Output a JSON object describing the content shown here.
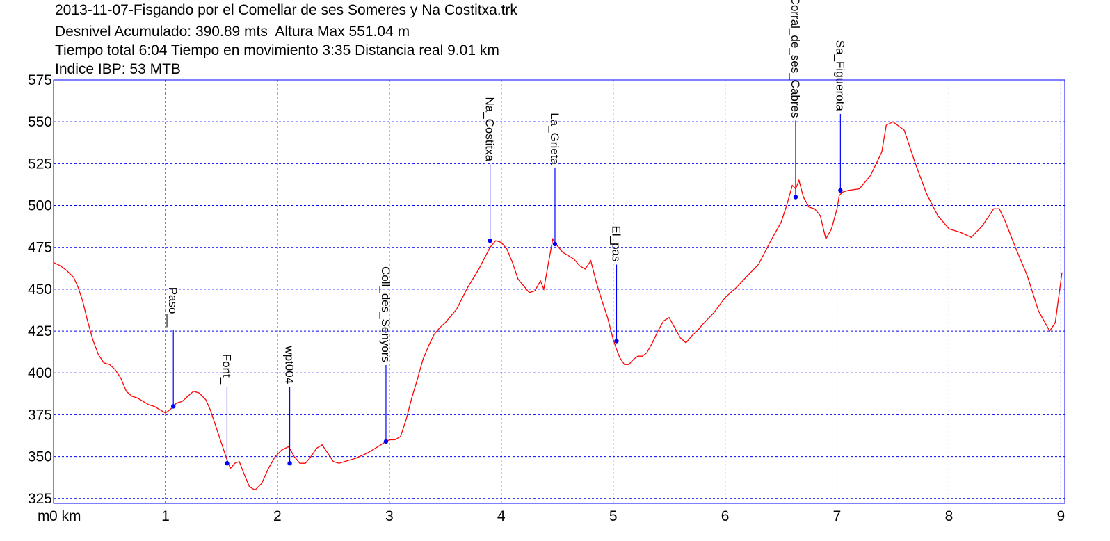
{
  "chart_data": {
    "type": "line",
    "title": "2013-11-07-Fisgando por el Comellar de ses Someres y Na Costitxa.trk",
    "subtitle_lines": [
      "Desnivel Acumulado: 390.89 mts  Altura Max 551.04 m",
      "Tiempo total 6:04 Tiempo en movimiento 3:35 Distancia real 9.01 km",
      "Indice IBP: 53 MTB"
    ],
    "x_unit_label": "m",
    "x_unit_suffix": "km",
    "xlim": [
      0,
      9.01
    ],
    "ylim": [
      322,
      575
    ],
    "y_ticks": [
      575,
      550,
      525,
      500,
      475,
      450,
      425,
      400,
      375,
      350,
      325
    ],
    "x_ticks": [
      0,
      1,
      2,
      3,
      4,
      5,
      6,
      7,
      8,
      9
    ],
    "grid": true,
    "line_color": "#ff0000",
    "grid_color": "#0000ff",
    "waypoint_color": "#0000ff",
    "series": [
      {
        "x": [
          0,
          0.06,
          0.12,
          0.18,
          0.22,
          0.26,
          0.3,
          0.35,
          0.4,
          0.45,
          0.5,
          0.55,
          0.6,
          0.65,
          0.7,
          0.75,
          0.8,
          0.85,
          0.9,
          0.95,
          1.0,
          1.04,
          1.07,
          1.1,
          1.15,
          1.2,
          1.25,
          1.3,
          1.36,
          1.4,
          1.45,
          1.5,
          1.55,
          1.58,
          1.62,
          1.66,
          1.7,
          1.75,
          1.8,
          1.86,
          1.92,
          1.98,
          2.04,
          2.1,
          2.15,
          2.2,
          2.25,
          2.3,
          2.35,
          2.4,
          2.45,
          2.5,
          2.55,
          2.6,
          2.7,
          2.8,
          2.9,
          2.97,
          3.0,
          3.05,
          3.1,
          3.15,
          3.2,
          3.25,
          3.3,
          3.35,
          3.4,
          3.45,
          3.5,
          3.6,
          3.7,
          3.8,
          3.9,
          3.95,
          4.0,
          4.05,
          4.1,
          4.15,
          4.2,
          4.25,
          4.3,
          4.35,
          4.38,
          4.42,
          4.46,
          4.5,
          4.55,
          4.6,
          4.65,
          4.7,
          4.75,
          4.8,
          4.85,
          4.9,
          4.95,
          5.0,
          5.03,
          5.06,
          5.1,
          5.14,
          5.18,
          5.22,
          5.26,
          5.3,
          5.35,
          5.4,
          5.45,
          5.5,
          5.55,
          5.6,
          5.65,
          5.7,
          5.75,
          5.8,
          5.9,
          6.0,
          6.1,
          6.2,
          6.3,
          6.4,
          6.5,
          6.55,
          6.6,
          6.63,
          6.66,
          6.7,
          6.75,
          6.8,
          6.85,
          6.9,
          6.95,
          7.0,
          7.02,
          7.05,
          7.1,
          7.2,
          7.3,
          7.4,
          7.44,
          7.5,
          7.6,
          7.7,
          7.8,
          7.9,
          8.0,
          8.1,
          8.2,
          8.3,
          8.4,
          8.45,
          8.5,
          8.6,
          8.7,
          8.8,
          8.9,
          8.95,
          9.01
        ],
        "y": [
          466,
          464,
          461,
          457,
          451,
          443,
          432,
          420,
          411,
          406,
          405,
          402,
          397,
          389,
          386,
          385,
          383,
          381,
          380,
          378,
          376,
          378,
          380,
          382,
          383,
          386,
          389,
          388,
          384,
          378,
          368,
          358,
          348,
          343,
          346,
          347,
          340,
          332,
          330,
          334,
          343,
          350,
          354,
          356,
          350,
          346,
          346,
          350,
          355,
          357,
          352,
          347,
          346,
          347,
          349,
          352,
          356,
          359,
          360,
          360,
          362,
          372,
          385,
          396,
          408,
          416,
          423,
          427,
          430,
          438,
          451,
          462,
          475,
          479,
          478,
          474,
          466,
          456,
          452,
          448,
          449,
          455,
          450,
          465,
          480,
          476,
          472,
          470,
          468,
          464,
          462,
          467,
          454,
          443,
          433,
          420,
          414,
          409,
          405,
          405,
          408,
          410,
          410,
          412,
          418,
          425,
          431,
          433,
          427,
          421,
          418,
          422,
          425,
          429,
          436,
          445,
          451,
          458,
          465,
          478,
          490,
          500,
          512,
          510,
          515,
          505,
          499,
          498,
          494,
          480,
          486,
          498,
          506,
          508,
          509,
          510,
          518,
          532,
          548,
          550,
          545,
          525,
          507,
          494,
          486,
          484,
          481,
          488,
          498,
          498,
          491,
          474,
          458,
          437,
          425,
          430,
          460
        ]
      }
    ],
    "waypoints": [
      {
        "name": "Paso__",
        "x": 1.07,
        "y": 380
      },
      {
        "name": "Font_",
        "x": 1.55,
        "y": 346
      },
      {
        "name": "wpt004",
        "x": 2.11,
        "y": 346
      },
      {
        "name": "Coll_des_Senyors",
        "x": 2.97,
        "y": 359
      },
      {
        "name": "Na_Costitxa",
        "x": 3.9,
        "y": 479
      },
      {
        "name": "La_Grieta",
        "x": 4.48,
        "y": 477
      },
      {
        "name": "El_pas",
        "x": 5.03,
        "y": 419
      },
      {
        "name": "Corral_de_ses_Cabres",
        "x": 6.63,
        "y": 505
      },
      {
        "name": "Sa_Figuerota",
        "x": 7.03,
        "y": 509
      }
    ]
  }
}
